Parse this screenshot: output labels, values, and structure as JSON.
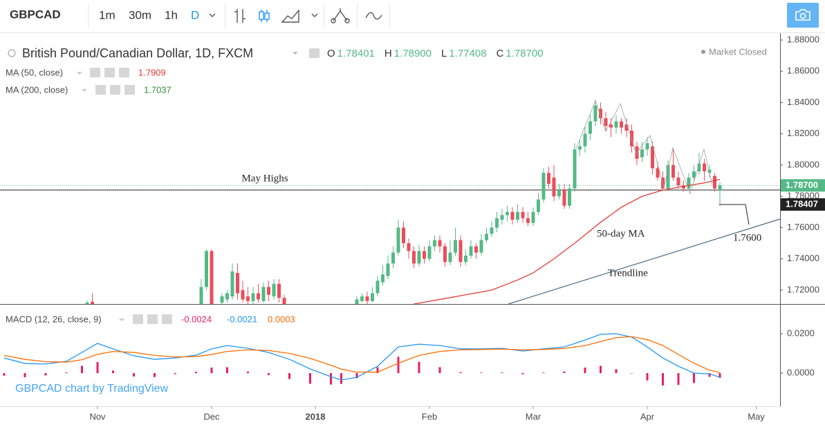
{
  "toolbar": {
    "symbol": "GBPCAD",
    "intervals": [
      "1m",
      "30m",
      "1h",
      "D"
    ]
  },
  "watermark": "GBPCAD chart by TradingView",
  "chart_data": [
    {
      "type": "candlestick",
      "title": "British Pound/Canadian Dollar, 1D, FXCM",
      "status": "Market Closed",
      "header_ohlc": [
        {
          "key": "O",
          "label": "1.78401"
        },
        {
          "key": "H",
          "label": "1.78900"
        },
        {
          "key": "L",
          "label": "1.77408"
        },
        {
          "key": "C",
          "label": "1.78700"
        }
      ],
      "annotations": [
        "May Highs",
        "50-day MA",
        "Trendline",
        "1.7600"
      ],
      "up_color": "#53b987",
      "down_color": "#eb4d5c",
      "x": [
        20,
        21,
        42,
        43,
        44,
        46,
        47,
        48,
        49,
        50,
        51,
        52,
        53,
        54,
        55,
        56,
        57,
        58,
        72,
        73,
        74,
        75,
        76,
        77,
        78,
        79,
        80,
        81,
        82,
        83,
        84,
        85,
        86,
        87,
        88,
        89,
        90,
        91,
        92,
        93,
        94,
        95,
        96,
        97,
        98,
        99,
        100,
        101,
        102,
        103,
        104,
        105,
        106,
        107,
        108,
        109,
        110,
        111,
        112,
        113,
        114,
        115,
        116,
        117,
        118,
        119,
        120,
        121,
        122,
        123,
        124,
        125,
        126,
        127,
        128,
        129,
        130,
        131,
        132,
        133,
        134,
        135,
        136,
        137,
        138,
        139,
        140,
        141,
        142
      ],
      "open": [
        1.71,
        1.7125,
        1.711,
        1.722,
        1.745,
        1.712,
        1.714,
        1.716,
        1.731,
        1.72,
        1.716,
        1.713,
        1.718,
        1.713,
        1.722,
        1.716,
        1.724,
        1.715,
        1.711,
        1.713,
        1.716,
        1.713,
        1.718,
        1.725,
        1.729,
        1.737,
        1.744,
        1.76,
        1.75,
        1.745,
        1.737,
        1.745,
        1.74,
        1.748,
        1.752,
        1.748,
        1.738,
        1.744,
        1.752,
        1.738,
        1.742,
        1.748,
        1.744,
        1.752,
        1.756,
        1.76,
        1.765,
        1.768,
        1.77,
        1.765,
        1.77,
        1.766,
        1.763,
        1.77,
        1.778,
        1.795,
        1.792,
        1.78,
        1.784,
        1.774,
        1.785,
        1.81,
        1.812,
        1.82,
        1.828,
        1.836,
        1.83,
        1.826,
        1.824,
        1.828,
        1.826,
        1.822,
        1.812,
        1.805,
        1.81,
        1.812,
        1.798,
        1.792,
        1.785,
        1.8,
        1.792,
        1.787,
        1.785,
        1.792,
        1.796,
        1.801,
        1.795,
        1.793,
        1.78401
      ],
      "high": [
        1.7135,
        1.718,
        1.727,
        1.746,
        1.746,
        1.718,
        1.72,
        1.737,
        1.737,
        1.726,
        1.722,
        1.722,
        1.724,
        1.725,
        1.726,
        1.727,
        1.727,
        1.717,
        1.716,
        1.718,
        1.719,
        1.722,
        1.729,
        1.736,
        1.742,
        1.748,
        1.765,
        1.764,
        1.753,
        1.748,
        1.749,
        1.748,
        1.752,
        1.755,
        1.755,
        1.75,
        1.752,
        1.76,
        1.755,
        1.746,
        1.752,
        1.75,
        1.756,
        1.76,
        1.764,
        1.77,
        1.772,
        1.774,
        1.773,
        1.775,
        1.773,
        1.77,
        1.773,
        1.782,
        1.798,
        1.799,
        1.8,
        1.788,
        1.788,
        1.788,
        1.814,
        1.816,
        1.825,
        1.832,
        1.842,
        1.84,
        1.834,
        1.83,
        1.832,
        1.83,
        1.83,
        1.826,
        1.815,
        1.815,
        1.818,
        1.815,
        1.802,
        1.796,
        1.803,
        1.81,
        1.796,
        1.79,
        1.795,
        1.8,
        1.808,
        1.804,
        1.8,
        1.795,
        1.789
      ],
      "low": [
        1.71,
        1.711,
        1.711,
        1.72,
        1.711,
        1.711,
        1.712,
        1.714,
        1.714,
        1.712,
        1.711,
        1.711,
        1.712,
        1.712,
        1.713,
        1.714,
        1.712,
        1.711,
        1.711,
        1.712,
        1.711,
        1.712,
        1.716,
        1.723,
        1.727,
        1.734,
        1.742,
        1.747,
        1.74,
        1.734,
        1.735,
        1.737,
        1.738,
        1.745,
        1.744,
        1.735,
        1.736,
        1.742,
        1.735,
        1.736,
        1.74,
        1.74,
        1.742,
        1.75,
        1.754,
        1.757,
        1.762,
        1.764,
        1.762,
        1.763,
        1.763,
        1.761,
        1.761,
        1.768,
        1.776,
        1.785,
        1.777,
        1.778,
        1.772,
        1.772,
        1.783,
        1.806,
        1.808,
        1.816,
        1.825,
        1.826,
        1.822,
        1.818,
        1.82,
        1.82,
        1.818,
        1.808,
        1.8,
        1.802,
        1.806,
        1.794,
        1.79,
        1.784,
        1.784,
        1.79,
        1.785,
        1.783,
        1.784,
        1.79,
        1.794,
        1.79,
        1.792,
        1.783,
        1.77408
      ],
      "close": [
        1.712,
        1.711,
        1.722,
        1.745,
        1.711,
        1.716,
        1.718,
        1.732,
        1.718,
        1.714,
        1.713,
        1.718,
        1.714,
        1.722,
        1.717,
        1.724,
        1.715,
        1.711,
        1.714,
        1.716,
        1.713,
        1.718,
        1.726,
        1.73,
        1.737,
        1.744,
        1.76,
        1.75,
        1.745,
        1.737,
        1.745,
        1.74,
        1.748,
        1.752,
        1.748,
        1.738,
        1.744,
        1.752,
        1.738,
        1.742,
        1.748,
        1.744,
        1.752,
        1.756,
        1.76,
        1.766,
        1.768,
        1.77,
        1.765,
        1.77,
        1.766,
        1.763,
        1.77,
        1.778,
        1.795,
        1.788,
        1.78,
        1.784,
        1.774,
        1.785,
        1.81,
        1.812,
        1.82,
        1.828,
        1.838,
        1.83,
        1.825,
        1.824,
        1.828,
        1.824,
        1.822,
        1.812,
        1.804,
        1.81,
        1.814,
        1.798,
        1.792,
        1.785,
        1.8,
        1.792,
        1.787,
        1.785,
        1.792,
        1.796,
        1.801,
        1.796,
        1.797,
        1.785,
        1.787
      ],
      "series": [
        {
          "name": "MA (50, close)",
          "color": "#e53935",
          "x": [
            83,
            88,
            93,
            98,
            103,
            106,
            110,
            114,
            119,
            123,
            127,
            131,
            135,
            139,
            142
          ],
          "values": [
            1.7111,
            1.714,
            1.717,
            1.72,
            1.7265,
            1.731,
            1.74,
            1.75,
            1.7634,
            1.773,
            1.78,
            1.784,
            1.7864,
            1.7886,
            1.7909
          ]
        },
        {
          "name": "MA (200, close)",
          "color": "#388e3c",
          "x": [
            142
          ],
          "values": [
            1.7037
          ]
        }
      ],
      "hlines": [
        {
          "value": 1.787,
          "label": "1.78700",
          "color": "#53b987",
          "style": "dotted"
        },
        {
          "value": 1.78407,
          "label": "1.78407",
          "color": "#222222",
          "style": "solid"
        }
      ],
      "xlim": [
        3.2,
        153.6
      ],
      "xticks": [
        {
          "value": 22,
          "label": "Nov"
        },
        {
          "value": 44,
          "label": "Dec"
        },
        {
          "value": 64,
          "label": "2018"
        },
        {
          "value": 86,
          "label": "Feb"
        },
        {
          "value": 106,
          "label": "Mar"
        },
        {
          "value": 128,
          "label": "Apr"
        },
        {
          "value": 149,
          "label": "May"
        }
      ],
      "ylim": [
        1.7111,
        1.8844
      ],
      "yticks": [
        {
          "value": 1.88,
          "label": "1.88000"
        },
        {
          "value": 1.86,
          "label": "1.86000"
        },
        {
          "value": 1.84,
          "label": "1.84000"
        },
        {
          "value": 1.82,
          "label": "1.82000"
        },
        {
          "value": 1.8,
          "label": "1.80000"
        },
        {
          "value": 1.78,
          "label": "1.78000"
        },
        {
          "value": 1.76,
          "label": "1.76000"
        },
        {
          "value": 1.74,
          "label": "1.74000"
        },
        {
          "value": 1.72,
          "label": "1.72000"
        }
      ]
    },
    {
      "type": "macd",
      "title": "MACD (12, 26, close, 9)",
      "x": [
        4,
        8,
        12,
        16,
        19,
        22,
        25,
        29,
        33,
        37,
        41,
        44,
        47,
        51,
        55,
        59,
        63,
        67,
        69,
        72,
        76,
        80,
        84,
        88,
        92,
        96,
        100,
        104,
        108,
        112,
        116,
        119,
        122,
        125,
        128,
        131,
        134,
        137,
        140,
        142
      ],
      "histogram": {
        "color": "#e91e63",
        "values": [
          -0.0013,
          -0.0021,
          -0.0012,
          0.0004,
          0.0037,
          0.0056,
          0.0013,
          -0.0017,
          -0.002,
          -0.0005,
          0.0007,
          0.0028,
          0.003,
          0.0008,
          -0.001,
          -0.003,
          -0.0054,
          -0.0058,
          -0.0055,
          -0.0026,
          0.003,
          0.0083,
          0.0057,
          0.003,
          0.0005,
          0.0003,
          0.0004,
          -0.0006,
          0.0003,
          0.0008,
          0.0028,
          0.0037,
          0.002,
          -0.0002,
          -0.0037,
          -0.0063,
          -0.006,
          -0.005,
          -0.0019,
          -0.0024
        ]
      },
      "series": [
        {
          "color": "#2196f3",
          "values": [
            0.0077,
            0.0049,
            0.0046,
            0.006,
            0.0105,
            0.0151,
            0.0123,
            0.0088,
            0.007,
            0.0077,
            0.0091,
            0.0123,
            0.014,
            0.0126,
            0.0105,
            0.007,
            0.0021,
            -0.0018,
            -0.0035,
            -0.0021,
            0.0035,
            0.0133,
            0.0147,
            0.014,
            0.0123,
            0.0123,
            0.0126,
            0.0112,
            0.0123,
            0.0133,
            0.0168,
            0.0197,
            0.02,
            0.0183,
            0.0133,
            0.0077,
            0.0035,
            0,
            -0.0004,
            -0.0021
          ]
        },
        {
          "color": "#ff6d00",
          "values": [
            0.009,
            0.007,
            0.0058,
            0.0056,
            0.0068,
            0.0095,
            0.011,
            0.0105,
            0.009,
            0.0082,
            0.0084,
            0.0095,
            0.011,
            0.0118,
            0.0115,
            0.01,
            0.0075,
            0.004,
            0.002,
            0.0005,
            0.0005,
            0.005,
            0.009,
            0.011,
            0.0118,
            0.012,
            0.0122,
            0.0118,
            0.012,
            0.0125,
            0.014,
            0.016,
            0.018,
            0.0185,
            0.017,
            0.014,
            0.0095,
            0.005,
            0.0015,
            0.0003
          ]
        }
      ],
      "ylim": [
        -0.01684,
        0.03474
      ],
      "yticks": [
        {
          "value": 0.02,
          "label": "0.0200"
        },
        {
          "value": 0,
          "label": "0.0000"
        }
      ]
    }
  ]
}
